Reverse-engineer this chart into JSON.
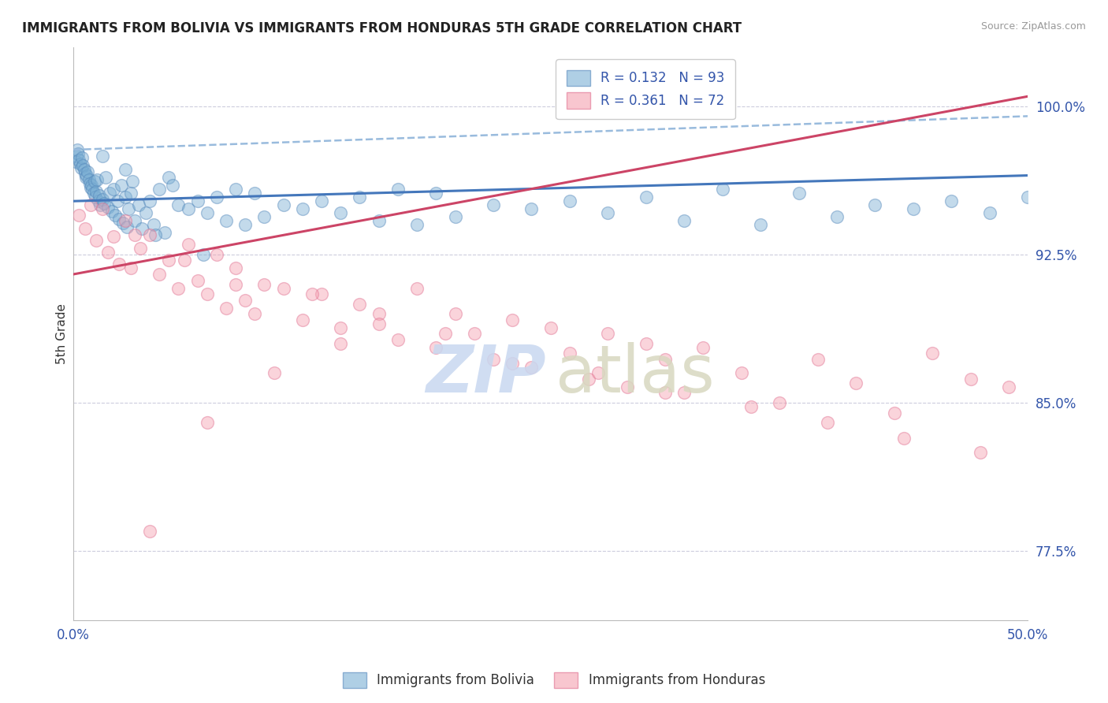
{
  "title": "IMMIGRANTS FROM BOLIVIA VS IMMIGRANTS FROM HONDURAS 5TH GRADE CORRELATION CHART",
  "source": "Source: ZipAtlas.com",
  "ylabel": "5th Grade",
  "bolivia_color": "#7BAFD4",
  "honduras_color": "#F4A0B0",
  "bolivia_edge": "#5588BB",
  "honduras_edge": "#E07090",
  "bolivia_line_color": "#4477BB",
  "honduras_line_color": "#CC4466",
  "bolivia_dash_color": "#99BBDD",
  "bolivia_R": 0.132,
  "bolivia_N": 93,
  "honduras_R": 0.361,
  "honduras_N": 72,
  "legend_bolivia": "Immigrants from Bolivia",
  "legend_honduras": "Immigrants from Honduras",
  "xlim": [
    0.0,
    50.0
  ],
  "ylim": [
    74.0,
    103.0
  ],
  "ytick_vals": [
    77.5,
    85.0,
    92.5,
    100.0
  ],
  "ytick_labels": [
    "77.5%",
    "85.0%",
    "92.5%",
    "100.0%"
  ],
  "xtick_vals": [
    0.0,
    50.0
  ],
  "xtick_labels": [
    "0.0%",
    "50.0%"
  ],
  "bolivia_x": [
    0.1,
    0.15,
    0.2,
    0.25,
    0.3,
    0.35,
    0.4,
    0.45,
    0.5,
    0.55,
    0.6,
    0.65,
    0.7,
    0.75,
    0.8,
    0.85,
    0.9,
    0.95,
    1.0,
    1.05,
    1.1,
    1.15,
    1.2,
    1.25,
    1.3,
    1.35,
    1.4,
    1.5,
    1.6,
    1.7,
    1.8,
    1.9,
    2.0,
    2.1,
    2.2,
    2.3,
    2.4,
    2.5,
    2.6,
    2.7,
    2.8,
    2.9,
    3.0,
    3.2,
    3.4,
    3.6,
    3.8,
    4.0,
    4.2,
    4.5,
    4.8,
    5.0,
    5.5,
    6.0,
    6.5,
    7.0,
    7.5,
    8.0,
    8.5,
    9.0,
    9.5,
    10.0,
    11.0,
    12.0,
    13.0,
    14.0,
    15.0,
    16.0,
    17.0,
    18.0,
    19.0,
    20.0,
    22.0,
    24.0,
    26.0,
    28.0,
    30.0,
    32.0,
    34.0,
    36.0,
    38.0,
    40.0,
    42.0,
    44.0,
    46.0,
    48.0,
    50.0,
    3.1,
    2.7,
    4.3,
    5.2,
    6.8,
    1.5
  ],
  "bolivia_y": [
    97.2,
    97.5,
    97.8,
    97.6,
    97.3,
    97.1,
    96.9,
    97.4,
    97.0,
    96.8,
    96.6,
    96.4,
    96.5,
    96.7,
    96.3,
    96.1,
    95.9,
    96.0,
    95.8,
    95.6,
    96.2,
    95.4,
    95.7,
    96.3,
    95.2,
    95.5,
    95.0,
    95.3,
    95.1,
    96.4,
    94.9,
    95.6,
    94.7,
    95.8,
    94.5,
    95.2,
    94.3,
    96.0,
    94.1,
    95.4,
    93.9,
    94.8,
    95.6,
    94.2,
    95.0,
    93.8,
    94.6,
    95.2,
    94.0,
    95.8,
    93.6,
    96.4,
    95.0,
    94.8,
    95.2,
    94.6,
    95.4,
    94.2,
    95.8,
    94.0,
    95.6,
    94.4,
    95.0,
    94.8,
    95.2,
    94.6,
    95.4,
    94.2,
    95.8,
    94.0,
    95.6,
    94.4,
    95.0,
    94.8,
    95.2,
    94.6,
    95.4,
    94.2,
    95.8,
    94.0,
    95.6,
    94.4,
    95.0,
    94.8,
    95.2,
    94.6,
    95.4,
    96.2,
    96.8,
    93.5,
    96.0,
    92.5,
    97.5
  ],
  "honduras_x": [
    0.3,
    0.6,
    0.9,
    1.2,
    1.5,
    1.8,
    2.1,
    2.4,
    2.7,
    3.0,
    3.5,
    4.0,
    4.5,
    5.0,
    5.5,
    6.0,
    6.5,
    7.0,
    7.5,
    8.0,
    8.5,
    9.0,
    9.5,
    10.0,
    11.0,
    12.0,
    13.0,
    14.0,
    15.0,
    16.0,
    17.0,
    18.0,
    19.0,
    20.0,
    21.0,
    22.0,
    23.0,
    24.0,
    25.0,
    26.0,
    27.0,
    28.0,
    29.0,
    30.0,
    31.0,
    32.0,
    33.0,
    35.0,
    37.0,
    39.0,
    41.0,
    43.0,
    45.0,
    47.0,
    49.0,
    3.2,
    5.8,
    8.5,
    12.5,
    16.0,
    19.5,
    23.0,
    27.5,
    31.0,
    35.5,
    39.5,
    43.5,
    47.5,
    4.0,
    7.0,
    10.5,
    14.0
  ],
  "honduras_y": [
    94.5,
    93.8,
    95.0,
    93.2,
    94.8,
    92.6,
    93.4,
    92.0,
    94.2,
    91.8,
    92.8,
    93.5,
    91.5,
    92.2,
    90.8,
    93.0,
    91.2,
    90.5,
    92.5,
    89.8,
    91.8,
    90.2,
    89.5,
    91.0,
    90.8,
    89.2,
    90.5,
    88.8,
    90.0,
    89.5,
    88.2,
    90.8,
    87.8,
    89.5,
    88.5,
    87.2,
    89.2,
    86.8,
    88.8,
    87.5,
    86.2,
    88.5,
    85.8,
    88.0,
    87.2,
    85.5,
    87.8,
    86.5,
    85.0,
    87.2,
    86.0,
    84.5,
    87.5,
    86.2,
    85.8,
    93.5,
    92.2,
    91.0,
    90.5,
    89.0,
    88.5,
    87.0,
    86.5,
    85.5,
    84.8,
    84.0,
    83.2,
    82.5,
    78.5,
    84.0,
    86.5,
    88.0
  ],
  "bolivia_trend_x0": 0.0,
  "bolivia_trend_x1": 50.0,
  "bolivia_trend_y0": 95.2,
  "bolivia_trend_y1": 96.5,
  "bolivia_dash_y0": 97.8,
  "bolivia_dash_y1": 99.5,
  "honduras_trend_y0": 91.5,
  "honduras_trend_y1": 100.5,
  "watermark_zip_color": "#C8D8F0",
  "watermark_atlas_color": "#D8D8C0"
}
